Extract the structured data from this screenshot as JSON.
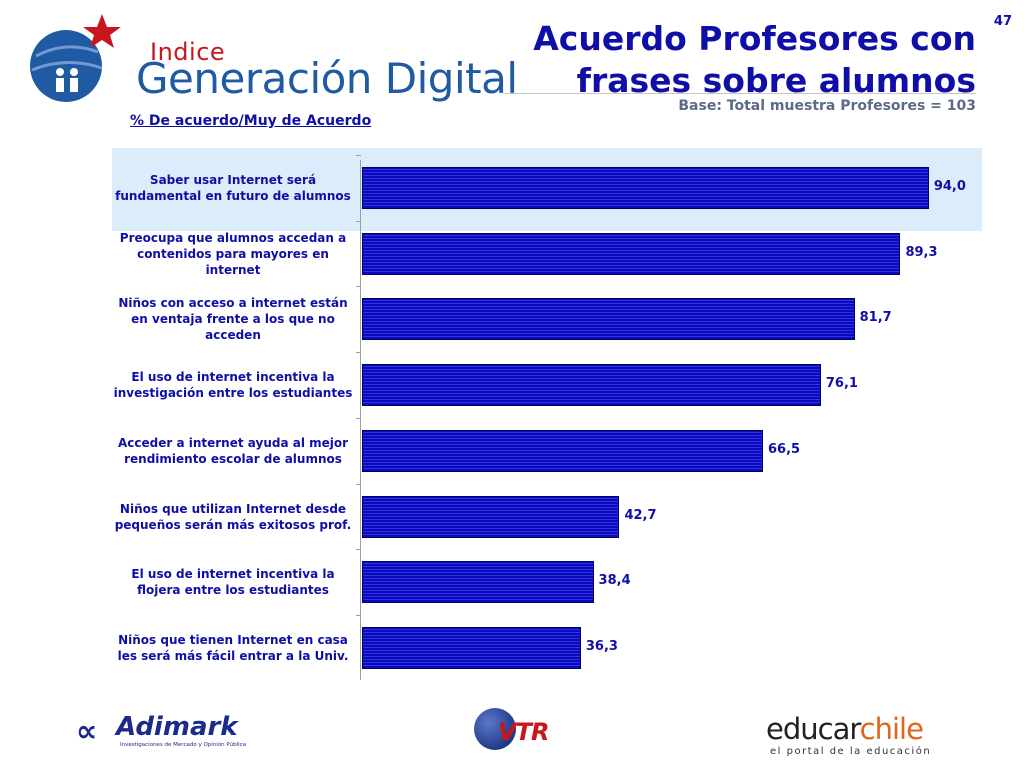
{
  "header": {
    "logo_index": "Indice",
    "logo_main": "Generación Digital",
    "title_line1": "Acuerdo Profesores con",
    "title_line2": "frases sobre alumnos",
    "subtitle": "Base: Total muestra Profesores = 103",
    "page_number": "47"
  },
  "chart_data": {
    "type": "bar",
    "orientation": "horizontal",
    "measure_label": "% De acuerdo/Muy de Acuerdo",
    "categories": [
      "Saber usar Internet será fundamental en futuro de alumnos",
      "Preocupa que alumnos accedan a contenidos para mayores en internet",
      "Niños con acceso a internet están en ventaja frente a los que no acceden",
      "El uso de internet incentiva la investigación entre los estudiantes",
      "Acceder a internet ayuda al mejor rendimiento escolar de alumnos",
      "Niños que utilizan Internet desde pequeños serán más exitosos prof.",
      "El uso de internet incentiva la flojera entre los estudiantes",
      "Niños que tienen Internet en casa les será más fácil entrar a la Univ."
    ],
    "values": [
      94.0,
      89.3,
      81.7,
      76.1,
      66.5,
      42.7,
      38.4,
      36.3
    ],
    "value_labels": [
      "94,0",
      "89,3",
      "81,7",
      "76,1",
      "66,5",
      "42,7",
      "38,4",
      "36,3"
    ],
    "xlim": [
      0,
      100
    ],
    "highlighted_category_index": 0,
    "colors": {
      "bar": "#0a0ab8",
      "text": "#0f0fa8",
      "highlight": "#dbecfb"
    }
  },
  "footer": {
    "adimark_name": "Adimark",
    "adimark_tagline": "Investigaciones de Mercado y Opinión Pública",
    "vtr_name": "VTR",
    "educar_part1": "educar",
    "educar_part2": "chile",
    "educar_tagline": "el portal de la educación"
  }
}
